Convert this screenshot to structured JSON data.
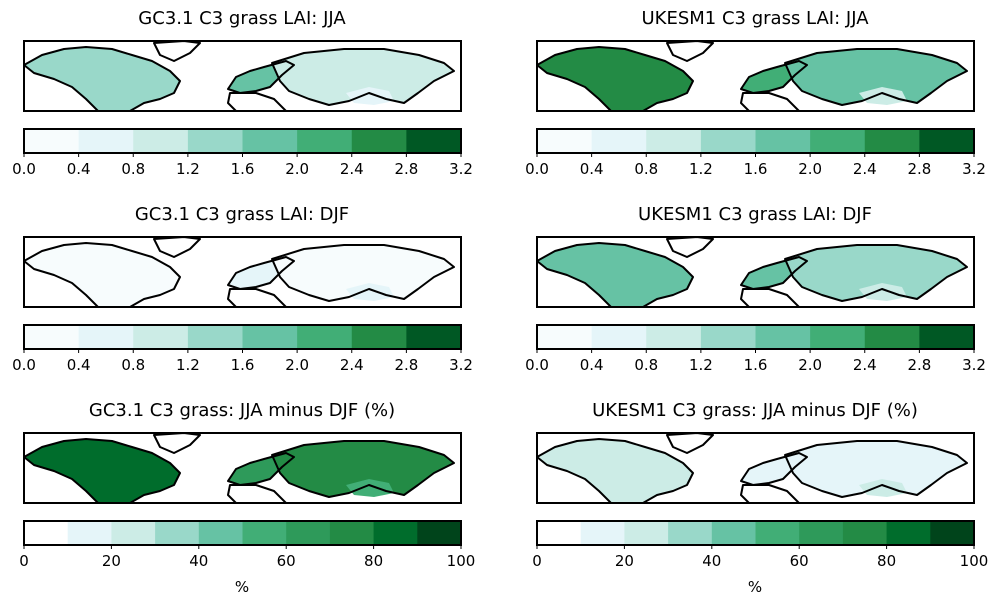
{
  "figure": {
    "panels": [
      {
        "id": "gc31-jja",
        "title": "GC3.1 C3 grass LAI: JJA",
        "field": "gc_jja",
        "cbar": "lai"
      },
      {
        "id": "ukesm1-jja",
        "title": "UKESM1 C3 grass LAI: JJA",
        "field": "uk_jja",
        "cbar": "lai"
      },
      {
        "id": "gc31-djf",
        "title": "GC3.1 C3 grass LAI: DJF",
        "field": "gc_djf",
        "cbar": "lai"
      },
      {
        "id": "ukesm1-djf",
        "title": "UKESM1 C3 grass LAI: DJF",
        "field": "uk_djf",
        "cbar": "lai"
      },
      {
        "id": "gc31-diff",
        "title": "GC3.1 C3 grass: JJA minus DJF (%)",
        "field": "gc_diff",
        "cbar": "pct",
        "units": "%"
      },
      {
        "id": "ukesm1-diff",
        "title": "UKESM1 C3 grass: JJA minus DJF (%)",
        "field": "uk_diff",
        "cbar": "pct",
        "units": "%"
      }
    ]
  },
  "chart_data": {
    "type": "heatmap",
    "colormaps": {
      "lai": {
        "ticks": [
          "0.0",
          "0.4",
          "0.8",
          "1.2",
          "1.6",
          "2.0",
          "2.4",
          "2.8",
          "3.2"
        ],
        "levels": [
          0.0,
          0.4,
          0.8,
          1.2,
          1.6,
          2.0,
          2.4,
          2.8,
          3.2
        ],
        "colors": [
          "#f7fcfd",
          "#e5f5f9",
          "#ccece6",
          "#99d8c9",
          "#66c2a4",
          "#41ae76",
          "#238b45",
          "#005824"
        ]
      },
      "pct": {
        "ticks": [
          "0",
          "20",
          "40",
          "60",
          "80",
          "100"
        ],
        "levels": [
          0,
          10,
          20,
          30,
          40,
          50,
          60,
          70,
          80,
          90,
          100
        ],
        "colors": [
          "#ffffff",
          "#e5f5f9",
          "#ccece6",
          "#99d8c9",
          "#66c2a4",
          "#41ae76",
          "#2e9a5a",
          "#238b45",
          "#006d2c",
          "#00441b"
        ]
      }
    },
    "fields": {
      "gc_jja": {
        "na": 1.2,
        "europe": 1.6,
        "asia": 1.1,
        "tibet": 0.5
      },
      "uk_jja": {
        "na": 2.5,
        "europe": 2.2,
        "asia": 1.9,
        "tibet": 1.0
      },
      "gc_djf": {
        "na": 0.15,
        "europe": 0.5,
        "asia": 0.1,
        "tibet": 0.4
      },
      "uk_djf": {
        "na": 1.7,
        "europe": 1.9,
        "asia": 1.5,
        "tibet": 0.9
      },
      "gc_diff": {
        "na": 85,
        "europe": 62,
        "asia": 78,
        "tibet": 55
      },
      "uk_diff": {
        "na": 20,
        "europe": 12,
        "asia": 18,
        "tibet": 28
      }
    }
  }
}
